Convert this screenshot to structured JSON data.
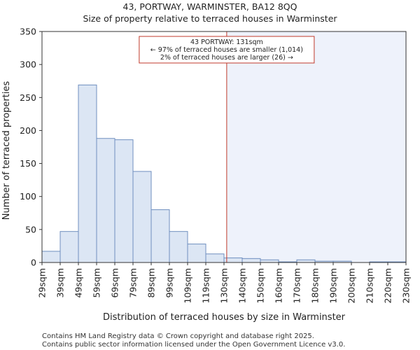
{
  "chart_data": {
    "type": "bar",
    "title_line1": "43, PORTWAY, WARMINSTER, BA12 8QQ",
    "title_line2": "Size of property relative to terraced houses in Warminster",
    "xlabel": "Distribution of terraced houses by size in Warminster",
    "ylabel": "Number of terraced properties",
    "bin_labels": [
      "29sqm",
      "39sqm",
      "49sqm",
      "59sqm",
      "69sqm",
      "79sqm",
      "89sqm",
      "99sqm",
      "109sqm",
      "119sqm",
      "130sqm",
      "140sqm",
      "150sqm",
      "160sqm",
      "170sqm",
      "180sqm",
      "190sqm",
      "200sqm",
      "210sqm",
      "220sqm",
      "230sqm"
    ],
    "values": [
      17,
      47,
      269,
      188,
      186,
      138,
      80,
      47,
      28,
      13,
      7,
      6,
      4,
      1,
      4,
      2,
      2,
      0,
      1,
      1
    ],
    "ylim": [
      0,
      350
    ],
    "yticks": [
      0,
      50,
      100,
      150,
      200,
      250,
      300,
      350
    ],
    "marker_value": 131,
    "marker_label": "43 PORTWAY: 131sqm",
    "annotation_lines": [
      "43 PORTWAY: 131sqm",
      "← 97% of terraced houses are smaller (1,014)",
      "2% of terraced houses are larger (26) →"
    ],
    "colors": {
      "bar_fill": "#dce6f4",
      "bar_stroke": "#6f8fbf",
      "marker": "#c0392b",
      "highlight_region": "#eef2fb"
    }
  },
  "footer": {
    "line1": "Contains HM Land Registry data © Crown copyright and database right 2025.",
    "line2": "Contains public sector information licensed under the Open Government Licence v3.0."
  }
}
